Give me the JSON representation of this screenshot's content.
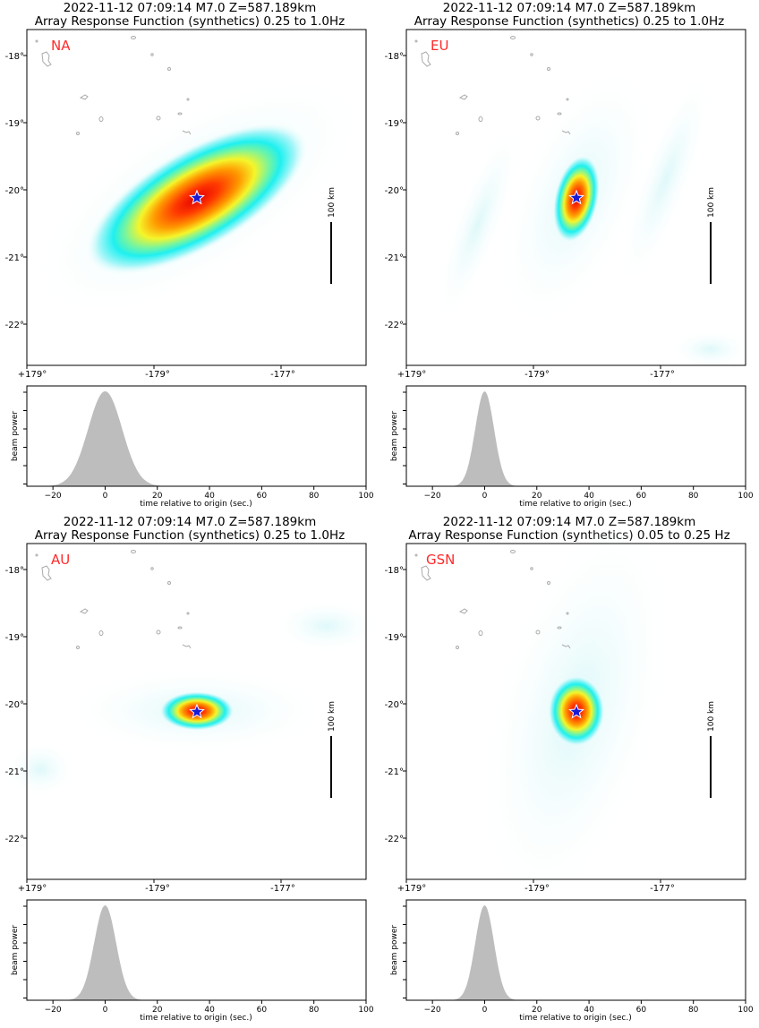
{
  "colors": {
    "network_label": "#ff2a2a",
    "beam_fill": "#bdbdbd",
    "star_fill": "#1a1ad6",
    "scale_bar": "#000000",
    "island_outline": "#aaaaaa"
  },
  "map_axes": {
    "lat_ticks": [
      "-18°",
      "-19°",
      "-20°",
      "-21°",
      "-22°"
    ],
    "lon_ticks": [
      "+179°",
      "-179°",
      "-177°"
    ],
    "scale_bar_label": "100 km"
  },
  "beam_axes": {
    "ylabel": "beam power",
    "xlabel": "time relative to origin (sec.)",
    "xticks": [
      -20,
      0,
      20,
      40,
      60,
      80,
      100
    ],
    "xlim": [
      -30,
      100
    ]
  },
  "panels": [
    {
      "title_line1": "2022-11-12 07:09:14 M7.0 Z=587.189km",
      "title_line2": "Array Response Function (synthetics) 0.25 to 1.0Hz",
      "network": "NA",
      "beam": {
        "center": 0,
        "sigma": 6.5
      }
    },
    {
      "title_line1": "2022-11-12 07:09:14 M7.0 Z=587.189km",
      "title_line2": "Array Response Function (synthetics) 0.25 to 1.0Hz",
      "network": "EU",
      "beam": {
        "center": 0,
        "sigma": 3.6
      }
    },
    {
      "title_line1": "2022-11-12 07:09:14 M7.0 Z=587.189km",
      "title_line2": "Array Response Function (synthetics) 0.25 to 1.0Hz",
      "network": "AU",
      "beam": {
        "center": 0,
        "sigma": 4.2
      }
    },
    {
      "title_line1": "2022-11-12 07:09:14 M7.0 Z=587.189km",
      "title_line2": "Array Response Function (synthetics) 0.05 to 0.25 Hz",
      "network": "GSN",
      "beam": {
        "center": 0,
        "sigma": 3.6
      }
    }
  ],
  "chart_data": [
    {
      "type": "heatmap",
      "title": "2022-11-12 07:09:14 M7.0 Z=587.189km Array Response Function (synthetics) 0.25 to 1.0Hz",
      "label": "NA"
    },
    {
      "type": "area",
      "ylabel": "beam power",
      "xlabel": "time relative to origin (sec.)",
      "xlim": [
        -30,
        100
      ],
      "peak_x": 0
    },
    {
      "type": "heatmap",
      "title": "2022-11-12 07:09:14 M7.0 Z=587.189km Array Response Function (synthetics) 0.25 to 1.0Hz",
      "label": "EU"
    },
    {
      "type": "area",
      "ylabel": "beam power",
      "xlabel": "time relative to origin (sec.)",
      "xlim": [
        -30,
        100
      ],
      "peak_x": 0
    },
    {
      "type": "heatmap",
      "title": "2022-11-12 07:09:14 M7.0 Z=587.189km Array Response Function (synthetics) 0.25 to 1.0Hz",
      "label": "AU"
    },
    {
      "type": "area",
      "ylabel": "beam power",
      "xlabel": "time relative to origin (sec.)",
      "xlim": [
        -30,
        100
      ],
      "peak_x": 0
    },
    {
      "type": "heatmap",
      "title": "2022-11-12 07:09:14 M7.0 Z=587.189km Array Response Function (synthetics) 0.05 to 0.25 Hz",
      "label": "GSN"
    },
    {
      "type": "area",
      "ylabel": "beam power",
      "xlabel": "time relative to origin (sec.)",
      "xlim": [
        -30,
        100
      ],
      "peak_x": 0
    }
  ]
}
